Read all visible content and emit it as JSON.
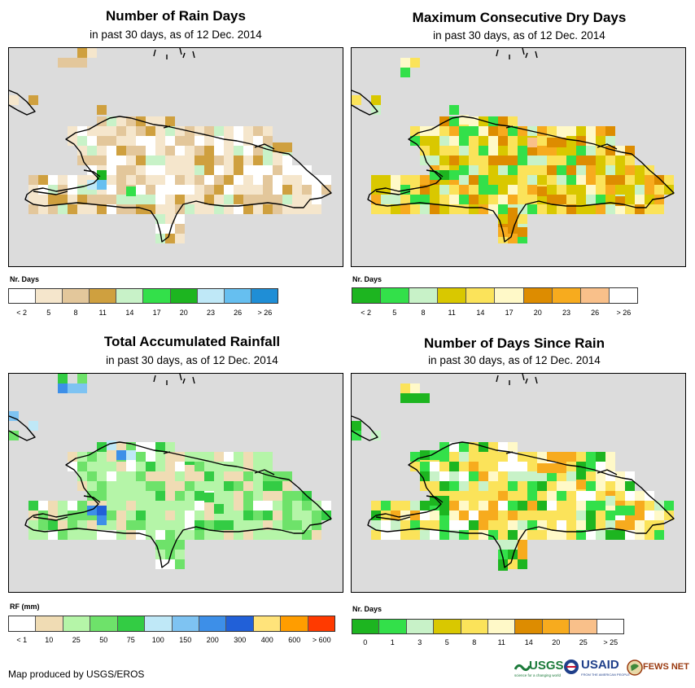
{
  "colors": {
    "ocean": "#dcdcdc",
    "border": "#000000"
  },
  "panels": [
    {
      "id": "rain-days",
      "title": "Number of Rain Days",
      "subtitle": "in past 30 days, as of 12 Dec. 2014",
      "legend": {
        "title": "Nr. Days",
        "colors": [
          "#ffffff",
          "#f5e6cc",
          "#e3c79b",
          "#cfa03f",
          "#c8f2c8",
          "#33e04a",
          "#1db520",
          "#bfe8f7",
          "#66bff0",
          "#1f8ed6"
        ],
        "labels": [
          "< 2",
          "5",
          "8",
          "11",
          "14",
          "17",
          "20",
          "23",
          "26",
          "> 26"
        ]
      }
    },
    {
      "id": "dry-days",
      "title": "Maximum Consecutive Dry Days",
      "subtitle": "in past 30 days, as of 12 Dec. 2014",
      "legend": {
        "title": "Nr. Days",
        "colors": [
          "#1db520",
          "#33e04a",
          "#c8f2c8",
          "#d9c800",
          "#fbe35a",
          "#fff9c8",
          "#dd8c00",
          "#f7ab1e",
          "#f9c08a",
          "#ffffff"
        ],
        "labels": [
          "< 2",
          "5",
          "8",
          "11",
          "14",
          "17",
          "20",
          "23",
          "26",
          "> 26"
        ]
      }
    },
    {
      "id": "rainfall",
      "title": "Total Accumulated Rainfall",
      "subtitle": "in past 30 days, as of 12 Dec. 2014",
      "legend": {
        "title": "RF (mm)",
        "colors": [
          "#ffffff",
          "#f0dcb4",
          "#b5f5a8",
          "#6ee26a",
          "#33cc44",
          "#bfe8f7",
          "#7ec3f2",
          "#3d8fe8",
          "#2160d8",
          "#ffe37a",
          "#ff9d00",
          "#ff3a00"
        ],
        "labels": [
          "< 1",
          "10",
          "25",
          "50",
          "75",
          "100",
          "150",
          "200",
          "300",
          "400",
          "600",
          "> 600"
        ]
      }
    },
    {
      "id": "days-since-rain",
      "title": "Number of Days Since Rain",
      "subtitle": "in past 30 days, as of 12 Dec. 2014",
      "legend": {
        "title": "Nr. Days",
        "colors": [
          "#1db520",
          "#33e04a",
          "#c8f2c8",
          "#d9c800",
          "#fbe35a",
          "#fff9c8",
          "#dd8c00",
          "#f7ab1e",
          "#f9c08a",
          "#ffffff"
        ],
        "labels": [
          "0",
          "1",
          "3",
          "5",
          "8",
          "11",
          "14",
          "20",
          "25",
          "> 25"
        ]
      }
    }
  ],
  "footer": {
    "credit": "Map produced by USGS/EROS",
    "logos": {
      "usgs": "USGS",
      "usgs_tagline": "science for a changing world",
      "usaid": "USAID",
      "usaid_tagline": "FROM THE AMERICAN PEOPLE",
      "fewsnet": "FEWS NET"
    }
  }
}
